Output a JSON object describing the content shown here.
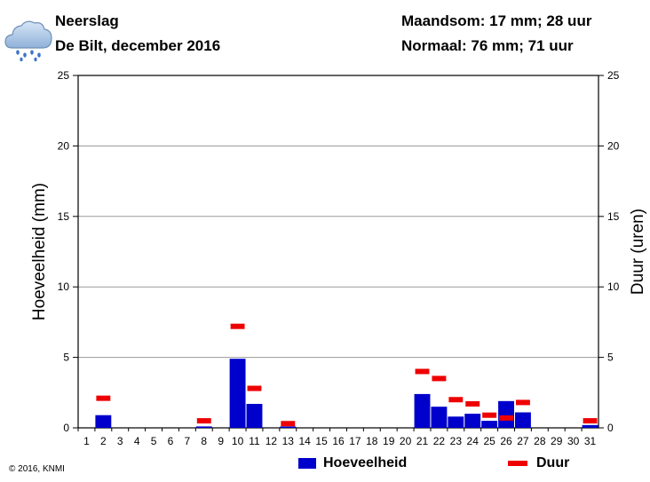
{
  "header": {
    "title": "Neerslag",
    "subtitle": "De Bilt, december 2016",
    "month_sum": "Maandsom: 17 mm; 28 uur",
    "normal": "Normaal: 76 mm; 71 uur",
    "weather_icon": "rain-cloud-icon"
  },
  "footer": {
    "copyright": "© 2016, KNMI"
  },
  "chart_data": {
    "type": "bar",
    "ylabel": "Hoeveelheid (mm)",
    "y2label": "Duur (uren)",
    "ylim": [
      0,
      25
    ],
    "y2lim": [
      0,
      25
    ],
    "yticks": [
      0,
      5,
      10,
      15,
      20,
      25
    ],
    "grid": true,
    "legend_position": "bottom",
    "categories": [
      "1",
      "2",
      "3",
      "4",
      "5",
      "6",
      "7",
      "8",
      "9",
      "10",
      "11",
      "12",
      "13",
      "14",
      "15",
      "16",
      "17",
      "18",
      "19",
      "20",
      "21",
      "22",
      "23",
      "24",
      "25",
      "26",
      "27",
      "28",
      "29",
      "30",
      "31"
    ],
    "series": [
      {
        "name": "Hoeveelheid",
        "color": "#0000cc",
        "style": "bar",
        "values": [
          0,
          0.9,
          0,
          0,
          0,
          0,
          0,
          0.1,
          0,
          4.9,
          1.7,
          0,
          0.1,
          0,
          0,
          0,
          0,
          0,
          0,
          0,
          2.4,
          1.5,
          0.8,
          1.0,
          0.5,
          1.9,
          1.1,
          0,
          0,
          0,
          0.2
        ]
      },
      {
        "name": "Duur",
        "color": "#ee0000",
        "style": "dash",
        "values": [
          0,
          2.1,
          0,
          0,
          0,
          0,
          0,
          0.5,
          0,
          7.2,
          2.8,
          0,
          0.3,
          0,
          0,
          0,
          0,
          0,
          0,
          0,
          4.0,
          3.5,
          2.0,
          1.7,
          0.9,
          0.7,
          1.8,
          0,
          0,
          0,
          0.5
        ]
      }
    ]
  }
}
